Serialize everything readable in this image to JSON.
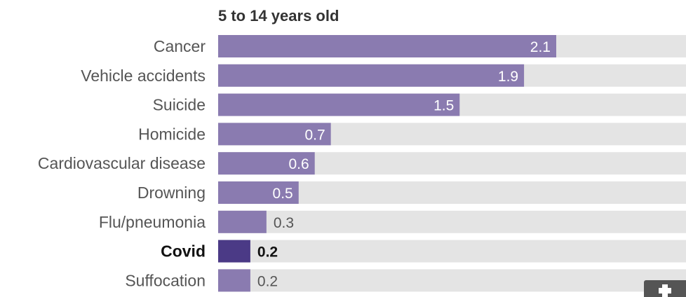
{
  "chart_data": {
    "type": "bar",
    "orientation": "horizontal",
    "title": "5 to 14 years old",
    "categories": [
      "Cancer",
      "Vehicle accidents",
      "Suicide",
      "Homicide",
      "Cardiovascular disease",
      "Drowning",
      "Flu/pneumonia",
      "Covid",
      "Suffocation"
    ],
    "values": [
      2.1,
      1.9,
      1.5,
      0.7,
      0.6,
      0.5,
      0.3,
      0.2,
      0.2
    ],
    "value_labels": [
      "2.1",
      "1.9",
      "1.5",
      "0.7",
      "0.6",
      "0.5",
      "0.3",
      "0.2",
      "0.2"
    ],
    "highlight": "Covid",
    "xlim": [
      0,
      2.1
    ],
    "grid": false,
    "colors": {
      "bar": "#8a7bb0",
      "bar_highlight": "#4b3a86",
      "track": "#e4e4e4",
      "label_inside": "#ffffff",
      "label_outside": "#555555",
      "label_highlight": "#111111"
    }
  },
  "icons": {
    "expand": "plus-icon"
  }
}
